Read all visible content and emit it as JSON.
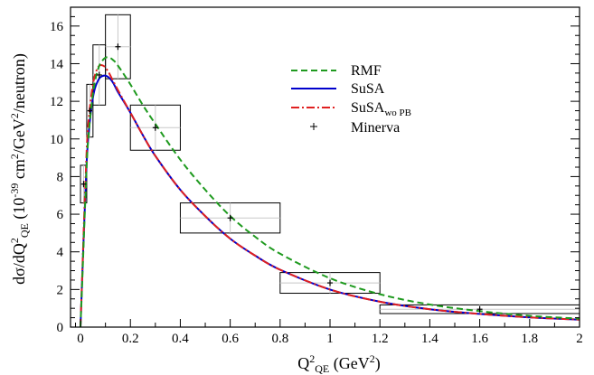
{
  "chart_data": {
    "type": "line",
    "xlabel": "Q",
    "xlabel_sup": "2",
    "xlabel_sub": "QE",
    "xlabel_unit_pre": " (GeV",
    "xlabel_unit_sup": "2",
    "xlabel_unit_post": ")",
    "ylabel_parts": {
      "a": "dσ/dQ",
      "a_sup": "2",
      "a_sub": "QE",
      "b": " (10",
      "b_sup": "-39",
      "c": " cm",
      "c_sup": "2",
      "d": "/GeV",
      "d_sup": "2",
      "e": "/neutron)"
    },
    "xlim": [
      -0.04,
      2.0
    ],
    "ylim": [
      0,
      17
    ],
    "x_ticks": [
      "0",
      "0.2",
      "0.4",
      "0.6",
      "0.8",
      "1",
      "1.2",
      "1.4",
      "1.6",
      "1.8",
      "2"
    ],
    "x_tick_values": [
      0,
      0.2,
      0.4,
      0.6,
      0.8,
      1.0,
      1.2,
      1.4,
      1.6,
      1.8,
      2.0
    ],
    "y_ticks": [
      "0",
      "2",
      "4",
      "6",
      "8",
      "10",
      "12",
      "14",
      "16"
    ],
    "y_tick_values": [
      0,
      2,
      4,
      6,
      8,
      10,
      12,
      14,
      16
    ],
    "legend_position": "top-right",
    "series": [
      {
        "name": "RMF",
        "style": "dashed",
        "color": "#1f9a1f",
        "x": [
          0.0,
          0.01,
          0.02,
          0.03,
          0.05,
          0.07,
          0.09,
          0.11,
          0.13,
          0.15,
          0.2,
          0.25,
          0.3,
          0.4,
          0.5,
          0.6,
          0.7,
          0.8,
          1.0,
          1.2,
          1.4,
          1.6,
          1.8,
          2.0
        ],
        "y": [
          0,
          3.5,
          7.0,
          9.8,
          12.4,
          13.7,
          14.2,
          14.35,
          14.2,
          13.9,
          12.9,
          11.8,
          10.8,
          8.9,
          7.3,
          5.9,
          4.8,
          3.9,
          2.6,
          1.75,
          1.2,
          0.85,
          0.6,
          0.45
        ]
      },
      {
        "name": "SuSA",
        "style": "solid",
        "color": "#0000cc",
        "x": [
          0.0,
          0.01,
          0.02,
          0.03,
          0.05,
          0.07,
          0.09,
          0.11,
          0.13,
          0.15,
          0.2,
          0.25,
          0.3,
          0.4,
          0.5,
          0.6,
          0.7,
          0.8,
          1.0,
          1.2,
          1.4,
          1.6,
          1.8,
          2.0
        ],
        "y": [
          0,
          3.8,
          7.3,
          9.9,
          12.2,
          13.1,
          13.35,
          13.3,
          13.0,
          12.5,
          11.4,
          10.2,
          9.1,
          7.3,
          5.9,
          4.7,
          3.8,
          3.05,
          2.0,
          1.35,
          0.95,
          0.7,
          0.52,
          0.4
        ]
      },
      {
        "name": "SuSA",
        "name_sub": "wo PB",
        "style": "dashdot",
        "color": "#e02020",
        "x": [
          0.0,
          0.01,
          0.02,
          0.03,
          0.05,
          0.07,
          0.09,
          0.11,
          0.13,
          0.15,
          0.2,
          0.25,
          0.3,
          0.4,
          0.5,
          0.6,
          0.7,
          0.8,
          1.0,
          1.2,
          1.4,
          1.6,
          1.8,
          2.0
        ],
        "y": [
          0,
          4.0,
          7.8,
          10.6,
          12.9,
          13.8,
          13.9,
          13.6,
          13.1,
          12.6,
          11.4,
          10.2,
          9.1,
          7.3,
          5.9,
          4.7,
          3.8,
          3.05,
          2.0,
          1.35,
          0.95,
          0.7,
          0.52,
          0.4
        ]
      }
    ],
    "data_series": {
      "name": "Minerva",
      "points": [
        {
          "x": 0.0125,
          "xlo": 0.0,
          "xhi": 0.025,
          "y": 7.6,
          "ylo": 6.6,
          "yhi": 8.6
        },
        {
          "x": 0.0375,
          "xlo": 0.025,
          "xhi": 0.05,
          "y": 11.5,
          "ylo": 10.1,
          "yhi": 12.9
        },
        {
          "x": 0.075,
          "xlo": 0.05,
          "xhi": 0.1,
          "y": 13.4,
          "ylo": 11.8,
          "yhi": 15.0
        },
        {
          "x": 0.15,
          "xlo": 0.1,
          "xhi": 0.2,
          "y": 14.9,
          "ylo": 13.2,
          "yhi": 16.6
        },
        {
          "x": 0.3,
          "xlo": 0.2,
          "xhi": 0.4,
          "y": 10.6,
          "ylo": 9.4,
          "yhi": 11.8
        },
        {
          "x": 0.6,
          "xlo": 0.4,
          "xhi": 0.8,
          "y": 5.8,
          "ylo": 5.0,
          "yhi": 6.6
        },
        {
          "x": 1.0,
          "xlo": 0.8,
          "xhi": 1.2,
          "y": 2.35,
          "ylo": 1.8,
          "yhi": 2.9
        },
        {
          "x": 1.6,
          "xlo": 1.2,
          "xhi": 2.0,
          "y": 0.95,
          "ylo": 0.72,
          "yhi": 1.18
        }
      ]
    }
  }
}
